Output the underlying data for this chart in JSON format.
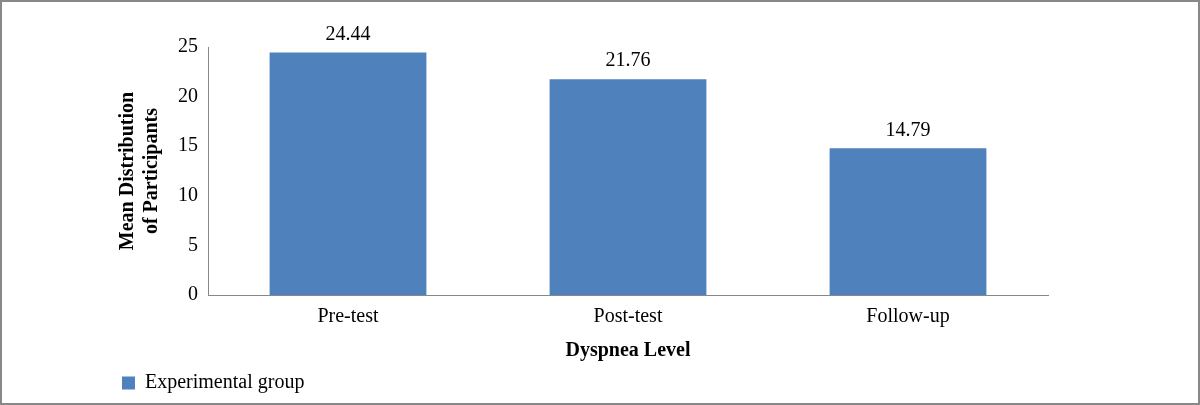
{
  "chart_data": {
    "type": "bar",
    "categories": [
      "Pre-test",
      "Post-test",
      "Follow-up"
    ],
    "series": [
      {
        "name": "Experimental group",
        "color": "#4f81bd",
        "values": [
          24.44,
          21.76,
          14.79
        ]
      }
    ],
    "xlabel": "Dyspnea Level",
    "ylabel": "Mean Distribution of Participants",
    "ylim": [
      0,
      25
    ],
    "yticks": [
      0,
      5,
      10,
      15,
      20,
      25
    ],
    "grid": false,
    "legend": "bottom left",
    "data_labels": true
  }
}
